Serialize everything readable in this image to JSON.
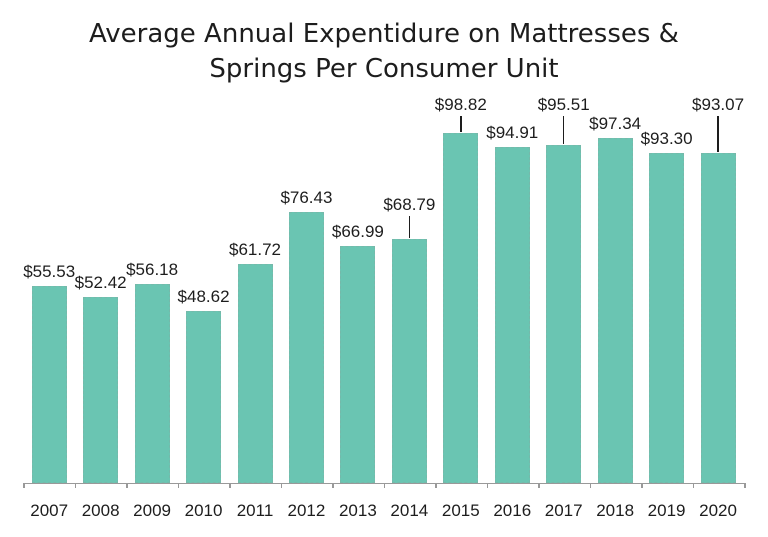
{
  "page": {
    "background_color": "#ffffff",
    "text_color": "#1d1d1d"
  },
  "chart_data": {
    "type": "bar",
    "title": "Average Annual Expentidure on Mattresses & Springs Per Consumer Unit",
    "title_lines": [
      "Average Annual Expentidure on Mattresses &",
      "Springs Per Consumer Unit"
    ],
    "xlabel": "",
    "ylabel": "",
    "categories": [
      "2007",
      "2008",
      "2009",
      "2010",
      "2011",
      "2012",
      "2013",
      "2014",
      "2015",
      "2016",
      "2017",
      "2018",
      "2019",
      "2020"
    ],
    "values": [
      55.53,
      52.42,
      56.18,
      48.62,
      61.72,
      76.43,
      66.99,
      68.79,
      98.82,
      94.91,
      95.51,
      97.34,
      93.3,
      93.07
    ],
    "value_labels": [
      "$55.53",
      "$52.42",
      "$56.18",
      "$48.62",
      "$61.72",
      "$76.43",
      "$66.99",
      "$68.79",
      "$98.82",
      "$94.91",
      "$95.51",
      "$97.34",
      "$93.30",
      "$93.07"
    ],
    "ylim": [
      0,
      105
    ],
    "grid": false,
    "legend": false,
    "y_axis_shown": false,
    "bar_color": "#6ac5b2",
    "axis_color": "#999999",
    "label_color": "#1d1d1d",
    "annotations": {
      "leader_line_indices": [
        7,
        8,
        10,
        13
      ],
      "leader_line_color": "#1d1d1d"
    }
  }
}
